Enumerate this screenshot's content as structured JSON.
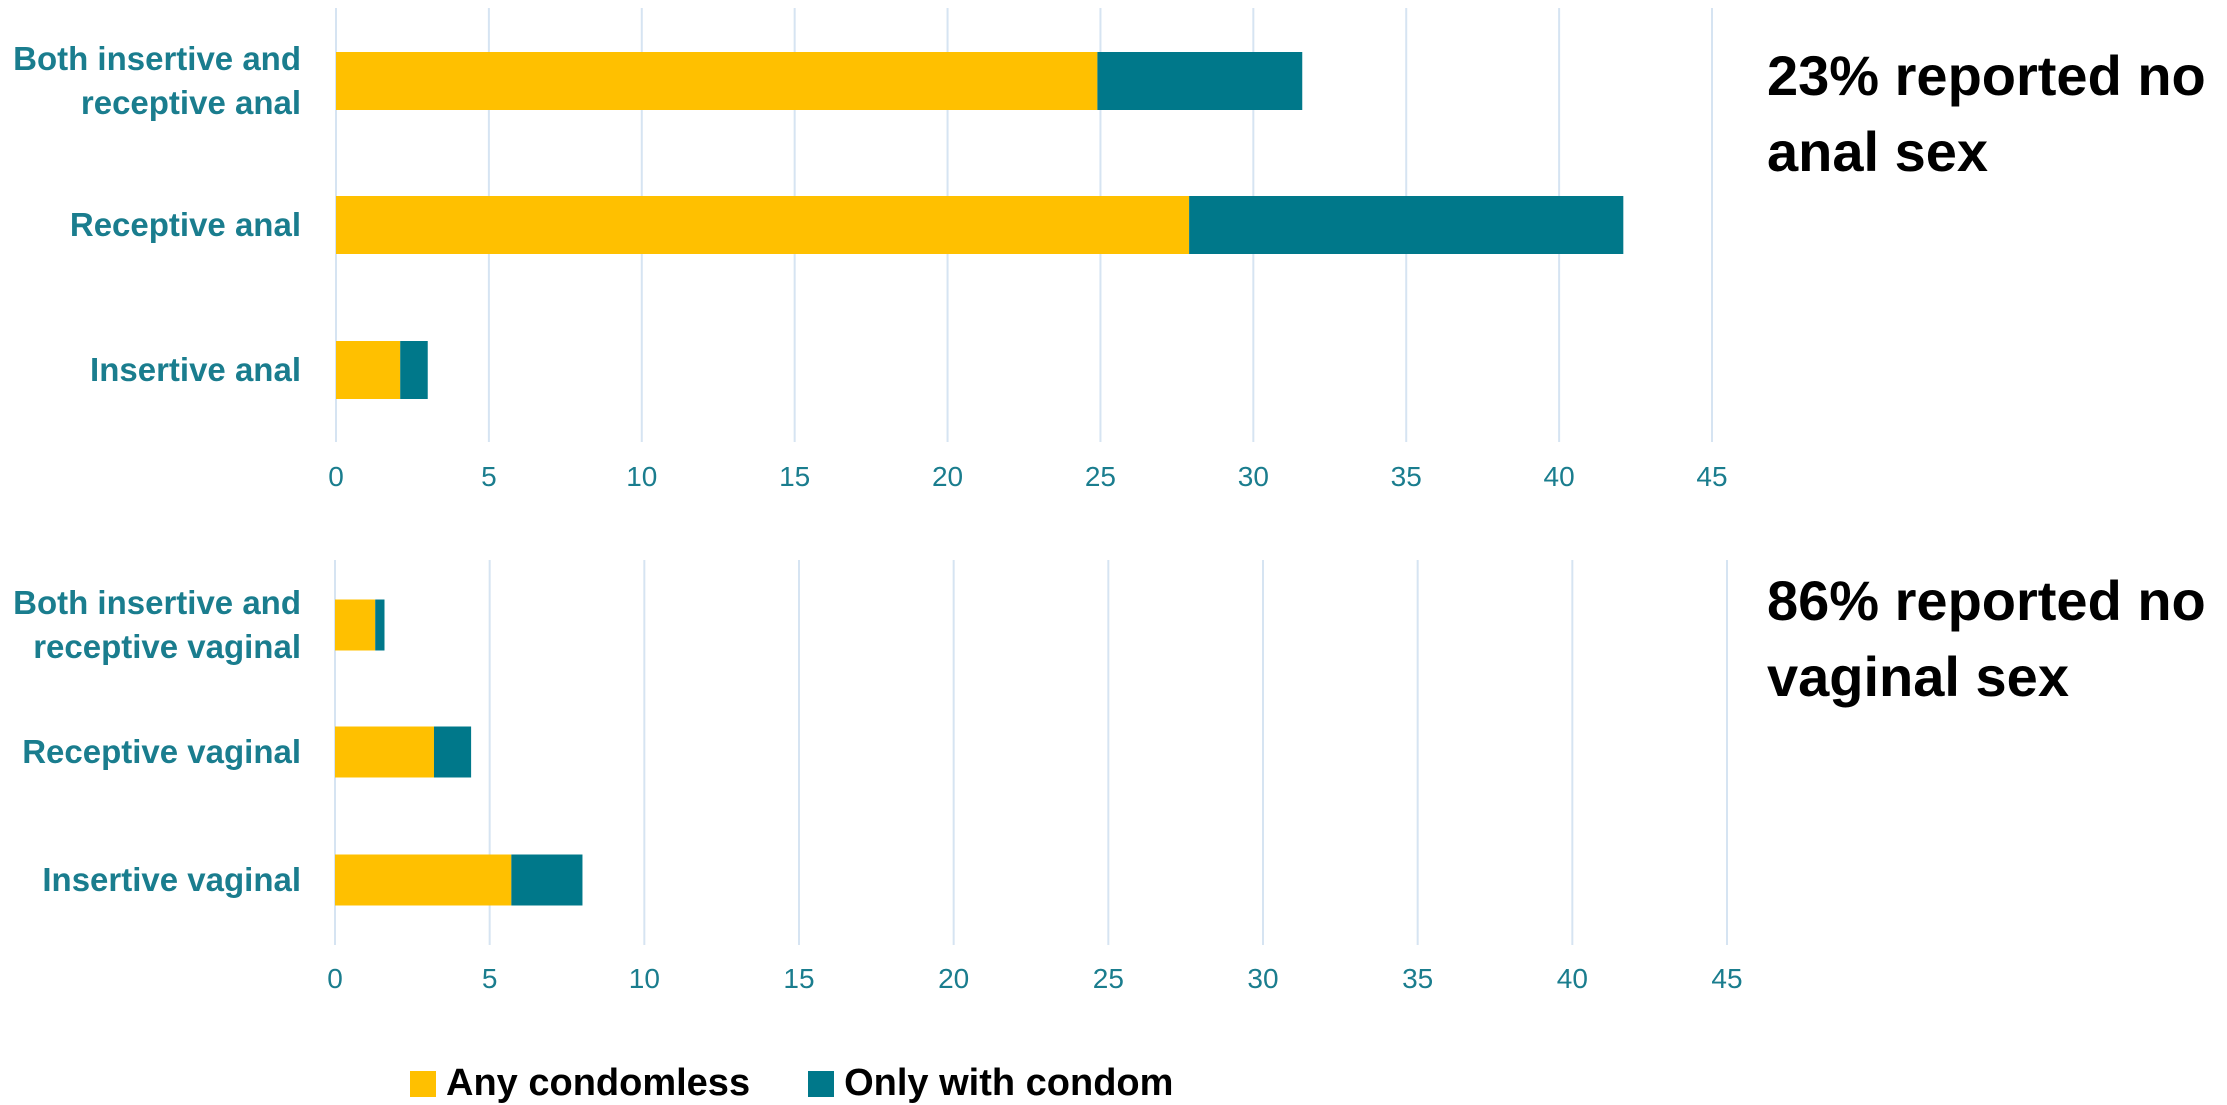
{
  "colors": {
    "any_condomless": "#FFC000",
    "only_with_condom": "#00788A",
    "label_text": "#1A7D8E",
    "gridline": "#D6E4F2"
  },
  "notes": {
    "anal": {
      "line1": "23% reported no",
      "line2": "anal sex"
    },
    "vaginal": {
      "line1": "86% reported no",
      "line2": "vaginal sex"
    }
  },
  "legend": {
    "any_condomless": "Any condomless",
    "only_with_condom": "Only with condom"
  },
  "chart_data": [
    {
      "type": "bar",
      "orientation": "horizontal",
      "stacked": true,
      "categories": [
        [
          "Both insertive and",
          "receptive anal"
        ],
        [
          "Receptive anal"
        ],
        [
          "Insertive anal"
        ]
      ],
      "series": [
        {
          "name": "Any condomless",
          "values": [
            24.9,
            27.9,
            2.1
          ]
        },
        {
          "name": "Only with condom",
          "values": [
            6.7,
            14.2,
            0.9
          ]
        }
      ],
      "xticks": [
        "0",
        "5",
        "10",
        "15",
        "20",
        "25",
        "30",
        "35",
        "40",
        "45"
      ],
      "xlim": [
        0,
        45
      ],
      "grid": true
    },
    {
      "type": "bar",
      "orientation": "horizontal",
      "stacked": true,
      "categories": [
        [
          "Both insertive and",
          "receptive vaginal"
        ],
        [
          "Receptive vaginal"
        ],
        [
          "Insertive vaginal"
        ]
      ],
      "series": [
        {
          "name": "Any condomless",
          "values": [
            1.3,
            3.2,
            5.7
          ]
        },
        {
          "name": "Only with condom",
          "values": [
            0.3,
            1.2,
            2.3
          ]
        }
      ],
      "xticks": [
        "0",
        "5",
        "10",
        "15",
        "20",
        "25",
        "30",
        "35",
        "40",
        "45"
      ],
      "xlim": [
        0,
        45
      ],
      "grid": true
    }
  ]
}
